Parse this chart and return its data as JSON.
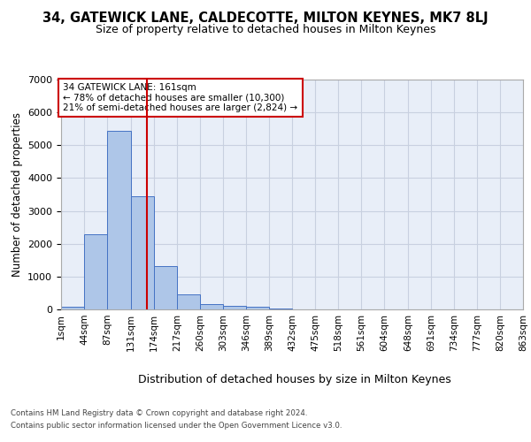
{
  "title1": "34, GATEWICK LANE, CALDECOTTE, MILTON KEYNES, MK7 8LJ",
  "title2": "Size of property relative to detached houses in Milton Keynes",
  "xlabel": "Distribution of detached houses by size in Milton Keynes",
  "ylabel": "Number of detached properties",
  "footer1": "Contains HM Land Registry data © Crown copyright and database right 2024.",
  "footer2": "Contains public sector information licensed under the Open Government Licence v3.0.",
  "annotation_line1": "34 GATEWICK LANE: 161sqm",
  "annotation_line2": "← 78% of detached houses are smaller (10,300)",
  "annotation_line3": "21% of semi-detached houses are larger (2,824) →",
  "property_size_sqm": 161,
  "bin_edges": [
    1,
    44,
    87,
    131,
    174,
    217,
    260,
    303,
    346,
    389,
    432,
    475,
    518,
    561,
    604,
    648,
    691,
    734,
    777,
    820,
    863
  ],
  "bar_heights": [
    75,
    2300,
    5450,
    3450,
    1310,
    470,
    160,
    100,
    75,
    40,
    0,
    0,
    0,
    0,
    0,
    0,
    0,
    0,
    0,
    0
  ],
  "bar_color": "#AEC6E8",
  "bar_edge_color": "#4472C4",
  "vline_color": "#CC0000",
  "vline_x": 161,
  "annotation_box_color": "#CC0000",
  "background_color": "#FFFFFF",
  "axes_facecolor": "#E8EEF8",
  "grid_color": "#C8D0E0",
  "ylim": [
    0,
    7000
  ],
  "xlim": [
    1,
    863
  ],
  "tick_label_fontsize": 7.5,
  "title1_fontsize": 10.5,
  "title2_fontsize": 9,
  "xlabel_fontsize": 9,
  "ylabel_fontsize": 8.5
}
